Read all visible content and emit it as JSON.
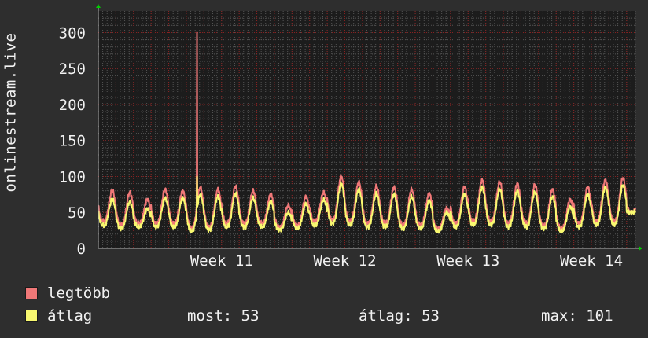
{
  "ylabel": "onlinestream.live",
  "legend": [
    {
      "label": "legtöbb",
      "color": "#f07878"
    },
    {
      "label": "átlag",
      "color": "#f8f870"
    }
  ],
  "stats": {
    "current": "most: 53",
    "average": "átlag: 53",
    "max": "max: 101"
  },
  "colors": {
    "background": "#2e2e2e",
    "plot_background": "#1c1c1c",
    "grid_major": "#8a2020",
    "grid_minor": "#555555",
    "axis": "#b0b0b0",
    "arrow": "#00cc00"
  },
  "chart_data": {
    "type": "line",
    "title": "",
    "xlabel": "",
    "ylabel": "onlinestream.live",
    "ylim": [
      0,
      330
    ],
    "yticks": [
      0,
      50,
      100,
      150,
      200,
      250,
      300
    ],
    "xlim": [
      0,
      30.5
    ],
    "xticks": [
      {
        "label": "Week 11",
        "x": 7
      },
      {
        "label": "Week 12",
        "x": 14
      },
      {
        "label": "Week 13",
        "x": 21
      },
      {
        "label": "Week 14",
        "x": 28
      }
    ],
    "x_unit": "days",
    "daily_cycle": {
      "peak_hours_utc": 19,
      "series": [
        {
          "name": "legtöbb",
          "daily_peaks": [
            80,
            78,
            68,
            82,
            80,
            85,
            82,
            86,
            80,
            75,
            60,
            72,
            78,
            100,
            92,
            86,
            85,
            82,
            76,
            56,
            85,
            95,
            92,
            90,
            88,
            82,
            68,
            85,
            95,
            98,
            75
          ],
          "daily_troughs": [
            38,
            33,
            35,
            35,
            35,
            28,
            30,
            35,
            35,
            35,
            30,
            32,
            38,
            40,
            38,
            35,
            35,
            33,
            33,
            28,
            35,
            38,
            38,
            35,
            35,
            32,
            28,
            35,
            38,
            38,
            50
          ]
        },
        {
          "name": "átlag",
          "daily_peaks": [
            68,
            65,
            55,
            70,
            70,
            75,
            72,
            76,
            70,
            65,
            50,
            62,
            68,
            90,
            82,
            76,
            75,
            72,
            66,
            50,
            75,
            85,
            82,
            80,
            78,
            72,
            58,
            75,
            85,
            88,
            55
          ],
          "daily_troughs": [
            32,
            28,
            30,
            30,
            30,
            24,
            26,
            30,
            30,
            30,
            26,
            28,
            32,
            35,
            33,
            30,
            30,
            28,
            28,
            24,
            30,
            33,
            33,
            30,
            30,
            28,
            24,
            30,
            33,
            33,
            50
          ]
        }
      ]
    },
    "spike": {
      "series": "legtöbb",
      "x": 5.6,
      "y": 300,
      "avg_y": 100
    }
  }
}
